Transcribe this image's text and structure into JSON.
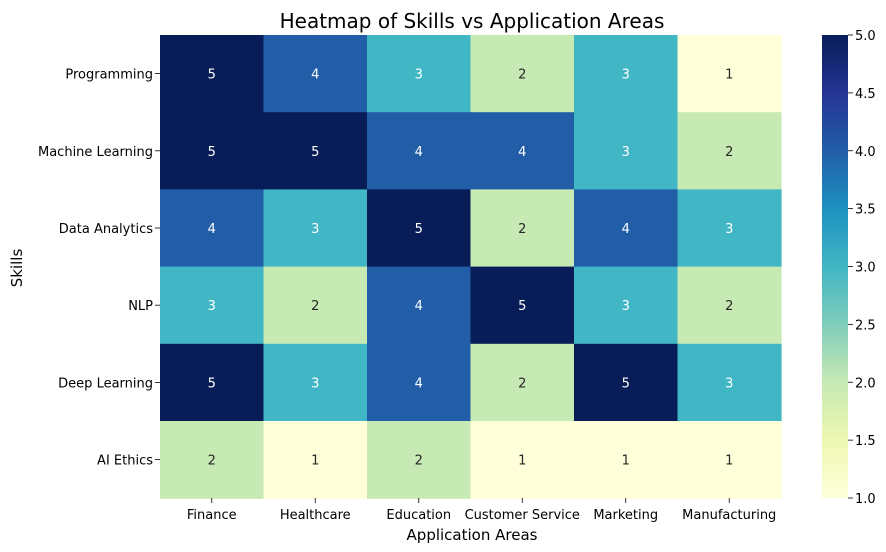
{
  "chart_data": {
    "type": "heatmap",
    "title": "Heatmap of Skills vs Application Areas",
    "xlabel": "Application Areas",
    "ylabel": "Skills",
    "x_categories": [
      "Finance",
      "Healthcare",
      "Education",
      "Customer Service",
      "Marketing",
      "Manufacturing"
    ],
    "y_categories": [
      "Programming",
      "Machine Learning",
      "Data Analytics",
      "NLP",
      "Deep Learning",
      "AI Ethics"
    ],
    "values": [
      [
        5,
        4,
        3,
        2,
        3,
        1
      ],
      [
        5,
        5,
        4,
        4,
        3,
        2
      ],
      [
        4,
        3,
        5,
        2,
        4,
        3
      ],
      [
        3,
        2,
        4,
        5,
        3,
        2
      ],
      [
        5,
        3,
        4,
        2,
        5,
        3
      ],
      [
        2,
        1,
        2,
        1,
        1,
        1
      ]
    ],
    "annotated": true,
    "colormap": "YlGnBu",
    "colormap_stops": [
      "#ffffd9",
      "#c7e9b4",
      "#41b6c4",
      "#225ea8",
      "#081d58"
    ],
    "color_range": [
      1,
      5
    ],
    "colorbar_ticks": [
      "1.0",
      "1.5",
      "2.0",
      "2.5",
      "3.0",
      "3.5",
      "4.0",
      "4.5",
      "5.0"
    ],
    "grid": false,
    "legend": "colorbar-right"
  }
}
